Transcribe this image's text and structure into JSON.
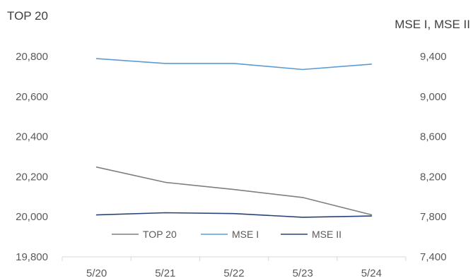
{
  "chart_data": {
    "type": "line",
    "left_axis_title": "TOP 20",
    "right_axis_title": "MSE I, MSE II",
    "categories": [
      "5/20",
      "5/21",
      "5/22",
      "5/23",
      "5/24"
    ],
    "left_ylim": [
      19800,
      20800
    ],
    "right_ylim": [
      7400,
      9400
    ],
    "left_ticks": [
      {
        "value": 20800,
        "label": "20,800"
      },
      {
        "value": 20600,
        "label": "20,600"
      },
      {
        "value": 20400,
        "label": "20,400"
      },
      {
        "value": 20200,
        "label": "20,200"
      },
      {
        "value": 20000,
        "label": "20,000"
      },
      {
        "value": 19800,
        "label": "19,800"
      }
    ],
    "right_ticks": [
      {
        "value": 9400,
        "label": "9,400"
      },
      {
        "value": 9000,
        "label": "9,000"
      },
      {
        "value": 8600,
        "label": "8,600"
      },
      {
        "value": 8200,
        "label": "8,200"
      },
      {
        "value": 7800,
        "label": "7,800"
      },
      {
        "value": 7400,
        "label": "7,400"
      }
    ],
    "series": [
      {
        "name": "TOP 20",
        "axis": "left",
        "color": "#7f7f7f",
        "values": [
          20248,
          20172,
          20136,
          20096,
          20010
        ]
      },
      {
        "name": "MSE I",
        "axis": "right",
        "color": "#5b9bd5",
        "values": [
          9378,
          9330,
          9330,
          9270,
          9323
        ]
      },
      {
        "name": "MSE II",
        "axis": "right",
        "color": "#264478",
        "values": [
          7818,
          7840,
          7832,
          7795,
          7808
        ]
      }
    ],
    "legend_position": "bottom-inside",
    "grid": false
  }
}
